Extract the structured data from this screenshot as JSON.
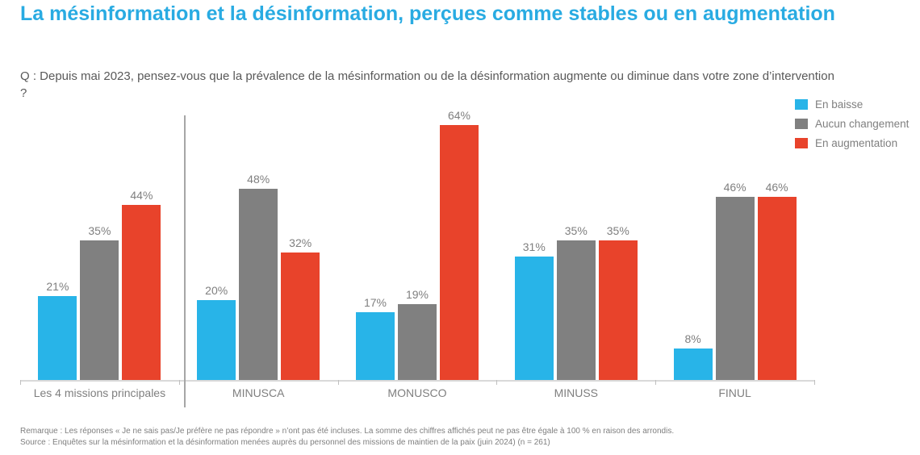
{
  "title": "La mésinformation et la désinformation, perçues comme stables ou en augmentation",
  "question": "Q : Depuis mai 2023, pensez-vous que la prévalence de la mésinformation ou de la désinformation augmente ou diminue dans votre zone d’intervention ?",
  "chart_data": {
    "type": "bar",
    "title": "La mésinformation et la désinformation, perçues comme stables ou en augmentation",
    "categories": [
      "Les 4 missions principales",
      "MINUSCA",
      "MONUSCO",
      "MINUSS",
      "FINUL"
    ],
    "series": [
      {
        "name": "En baisse",
        "color": "#28B4E8",
        "values": [
          21,
          20,
          17,
          31,
          8
        ]
      },
      {
        "name": "Aucun changement",
        "color": "#808080",
        "values": [
          35,
          48,
          19,
          35,
          46
        ]
      },
      {
        "name": "En augmentation",
        "color": "#E8432B",
        "values": [
          44,
          32,
          64,
          35,
          46
        ]
      }
    ],
    "value_suffix": "%",
    "data_labels": true,
    "xlabel": "",
    "ylabel": "",
    "ylim": [
      0,
      67
    ],
    "grid": false,
    "legend_position": "top-right",
    "separator_after_category_index": 0
  },
  "notes": {
    "remark": "Remarque : Les réponses « Je ne sais pas/Je préfère ne pas répondre » n’ont pas été incluses. La somme des chiffres affichés peut ne pas être égale à 100 % en raison des arrondis.",
    "source": "Source : Enquêtes sur la mésinformation et la désinformation menées auprès du personnel des missions de maintien de la paix (juin 2024) (n = 261)"
  },
  "colors": {
    "title": "#29ABE2",
    "question_text": "#595959",
    "labels": "#7F7F7F",
    "axis_line": "#D9D9D9",
    "divider_line": "#A6A6A6",
    "background": "#FFFFFF"
  }
}
